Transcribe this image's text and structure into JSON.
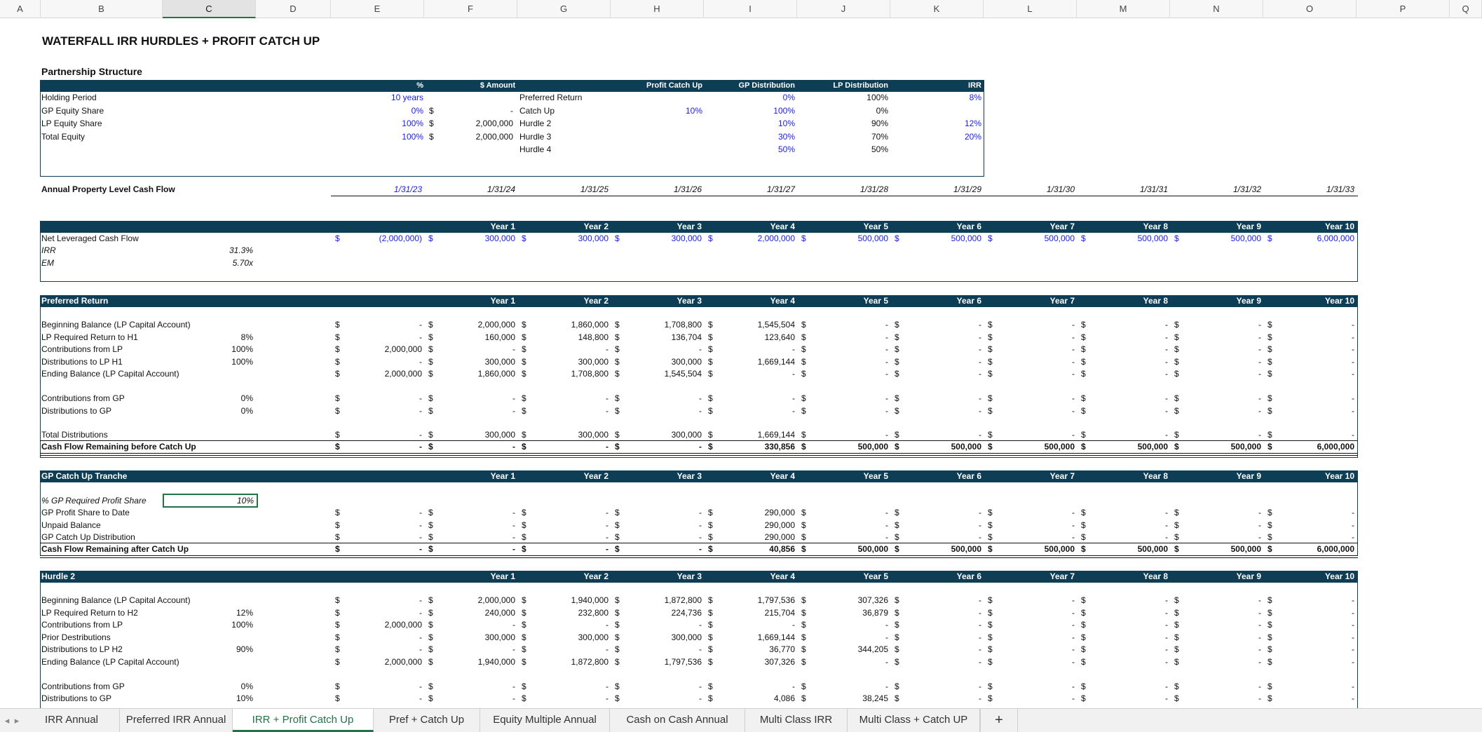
{
  "columns": [
    "A",
    "B",
    "C",
    "D",
    "E",
    "F",
    "G",
    "H",
    "I",
    "J",
    "K",
    "L",
    "M",
    "N",
    "O",
    "P",
    "Q"
  ],
  "title": "WATERFALL IRR HURDLES + PROFIT CATCH UP",
  "partnership": {
    "heading": "Partnership Structure",
    "hdr_pct": "%",
    "hdr_amount": "$ Amount",
    "hdr_catch": "Profit Catch Up",
    "hdr_gp": "GP Distribution",
    "hdr_lp": "LP Distribution",
    "hdr_irr": "IRR",
    "rows": [
      {
        "label": "Holding Period",
        "pct": "10 years",
        "cur": "",
        "amt": "",
        "tier": "Preferred Return",
        "catch": "",
        "gp": "0%",
        "lp": "100%",
        "irr": "8%"
      },
      {
        "label": "GP Equity Share",
        "pct": "0%",
        "cur": "$",
        "amt": "-",
        "tier": "Catch Up",
        "catch": "10%",
        "gp": "100%",
        "lp": "0%",
        "irr": ""
      },
      {
        "label": "LP Equity Share",
        "pct": "100%",
        "cur": "$",
        "amt": "2,000,000",
        "tier": "Hurdle 2",
        "catch": "",
        "gp": "10%",
        "lp": "90%",
        "irr": "12%"
      },
      {
        "label": "Total Equity",
        "pct": "100%",
        "cur": "$",
        "amt": "2,000,000",
        "tier": "Hurdle 3",
        "catch": "",
        "gp": "30%",
        "lp": "70%",
        "irr": "20%"
      },
      {
        "label": "",
        "pct": "",
        "cur": "",
        "amt": "",
        "tier": "Hurdle 4",
        "catch": "",
        "gp": "50%",
        "lp": "50%",
        "irr": ""
      }
    ]
  },
  "annual": {
    "label": "Annual Property Level Cash Flow",
    "dates": [
      "1/31/23",
      "1/31/24",
      "1/31/25",
      "1/31/26",
      "1/31/27",
      "1/31/28",
      "1/31/29",
      "1/31/30",
      "1/31/31",
      "1/31/32",
      "1/31/33"
    ]
  },
  "years": [
    "Year 1",
    "Year 2",
    "Year 3",
    "Year 4",
    "Year 5",
    "Year 6",
    "Year 7",
    "Year 8",
    "Year 9",
    "Year 10"
  ],
  "cashflow": {
    "label": "Net Leveraged Cash Flow",
    "values": [
      "(2,000,000)",
      "300,000",
      "300,000",
      "300,000",
      "2,000,000",
      "500,000",
      "500,000",
      "500,000",
      "500,000",
      "500,000",
      "6,000,000"
    ],
    "irr_label": "IRR",
    "irr": "31.3%",
    "em_label": "EM",
    "em": "5.70x"
  },
  "pref": {
    "heading": "Preferred Return",
    "rows": [
      {
        "label": "Beginning Balance (LP Capital Account)",
        "c": "",
        "vals": [
          "-",
          "2,000,000",
          "1,860,000",
          "1,708,800",
          "1,545,504",
          "-",
          "-",
          "-",
          "-",
          "-",
          "-"
        ]
      },
      {
        "label": "LP Required Return to H1",
        "c": "8%",
        "vals": [
          "-",
          "160,000",
          "148,800",
          "136,704",
          "123,640",
          "-",
          "-",
          "-",
          "-",
          "-",
          "-"
        ]
      },
      {
        "label": "Contributions from LP",
        "c": "100%",
        "vals": [
          "2,000,000",
          "-",
          "-",
          "-",
          "-",
          "-",
          "-",
          "-",
          "-",
          "-",
          "-"
        ]
      },
      {
        "label": "Distributions to LP H1",
        "c": "100%",
        "vals": [
          "-",
          "300,000",
          "300,000",
          "300,000",
          "1,669,144",
          "-",
          "-",
          "-",
          "-",
          "-",
          "-"
        ]
      },
      {
        "label": "Ending Balance (LP Capital Account)",
        "c": "",
        "vals": [
          "2,000,000",
          "1,860,000",
          "1,708,800",
          "1,545,504",
          "-",
          "-",
          "-",
          "-",
          "-",
          "-",
          "-"
        ]
      },
      {
        "label": "Contributions from GP",
        "c": "0%",
        "vals": [
          "-",
          "-",
          "-",
          "-",
          "-",
          "-",
          "-",
          "-",
          "-",
          "-",
          "-"
        ]
      },
      {
        "label": "Distributions to GP",
        "c": "0%",
        "vals": [
          "-",
          "-",
          "-",
          "-",
          "-",
          "-",
          "-",
          "-",
          "-",
          "-",
          "-"
        ]
      },
      {
        "label": "Total Distributions",
        "c": "",
        "vals": [
          "-",
          "300,000",
          "300,000",
          "300,000",
          "1,669,144",
          "-",
          "-",
          "-",
          "-",
          "-",
          "-"
        ]
      },
      {
        "label": "Cash Flow Remaining before Catch Up",
        "c": "",
        "vals": [
          "-",
          "-",
          "-",
          "-",
          "330,856",
          "500,000",
          "500,000",
          "500,000",
          "500,000",
          "500,000",
          "6,000,000"
        ]
      }
    ]
  },
  "catchup": {
    "heading": "GP Catch Up Tranche",
    "req_label": "% GP Required Profit Share",
    "req_value": "10%",
    "rows": [
      {
        "label": "GP Profit Share to Date",
        "vals": [
          "-",
          "-",
          "-",
          "-",
          "290,000",
          "-",
          "-",
          "-",
          "-",
          "-",
          "-"
        ]
      },
      {
        "label": "Unpaid Balance",
        "vals": [
          "-",
          "-",
          "-",
          "-",
          "290,000",
          "-",
          "-",
          "-",
          "-",
          "-",
          "-"
        ]
      },
      {
        "label": "GP Catch Up Distribution",
        "vals": [
          "-",
          "-",
          "-",
          "-",
          "290,000",
          "-",
          "-",
          "-",
          "-",
          "-",
          "-"
        ]
      },
      {
        "label": "Cash Flow Remaining after Catch Up",
        "vals": [
          "-",
          "-",
          "-",
          "-",
          "40,856",
          "500,000",
          "500,000",
          "500,000",
          "500,000",
          "500,000",
          "6,000,000"
        ]
      }
    ]
  },
  "hurdle2": {
    "heading": "Hurdle 2",
    "rows": [
      {
        "label": "Beginning Balance (LP Capital Account)",
        "c": "",
        "vals": [
          "-",
          "2,000,000",
          "1,940,000",
          "1,872,800",
          "1,797,536",
          "307,326",
          "-",
          "-",
          "-",
          "-",
          "-"
        ]
      },
      {
        "label": "LP Required Return to H2",
        "c": "12%",
        "vals": [
          "-",
          "240,000",
          "232,800",
          "224,736",
          "215,704",
          "36,879",
          "-",
          "-",
          "-",
          "-",
          "-"
        ]
      },
      {
        "label": "Contributions from LP",
        "c": "100%",
        "vals": [
          "2,000,000",
          "-",
          "-",
          "-",
          "-",
          "-",
          "-",
          "-",
          "-",
          "-",
          "-"
        ]
      },
      {
        "label": "Prior Destributions",
        "c": "",
        "vals": [
          "-",
          "300,000",
          "300,000",
          "300,000",
          "1,669,144",
          "-",
          "-",
          "-",
          "-",
          "-",
          "-"
        ]
      },
      {
        "label": "Distributions to LP H2",
        "c": "90%",
        "vals": [
          "-",
          "-",
          "-",
          "-",
          "36,770",
          "344,205",
          "-",
          "-",
          "-",
          "-",
          "-"
        ]
      },
      {
        "label": "Ending Balance (LP Capital Account)",
        "c": "",
        "vals": [
          "2,000,000",
          "1,940,000",
          "1,872,800",
          "1,797,536",
          "307,326",
          "-",
          "-",
          "-",
          "-",
          "-",
          "-"
        ]
      },
      {
        "label": "Contributions from GP",
        "c": "0%",
        "vals": [
          "-",
          "-",
          "-",
          "-",
          "-",
          "-",
          "-",
          "-",
          "-",
          "-",
          "-"
        ]
      },
      {
        "label": "Distributions to GP",
        "c": "10%",
        "vals": [
          "-",
          "-",
          "-",
          "-",
          "4,086",
          "38,245",
          "-",
          "-",
          "-",
          "-",
          "-"
        ]
      }
    ]
  },
  "tabs": [
    "IRR Annual",
    "Preferred IRR Annual",
    "IRR + Profit Catch Up",
    "Pref + Catch Up",
    "Equity Multiple Annual",
    "Cash on Cash Annual",
    "Multi Class IRR",
    "Multi Class + Catch UP"
  ],
  "active_tab": "IRR + Profit Catch Up",
  "add_tab": "+",
  "colors": {
    "header_fill": "#0e3d56",
    "input_blue": "#1a1aee",
    "excel_green": "#217346"
  }
}
